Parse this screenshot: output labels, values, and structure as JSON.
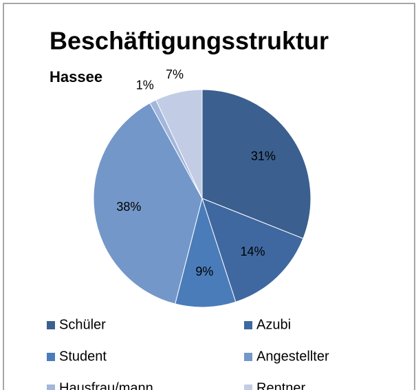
{
  "chart_data": {
    "type": "pie",
    "title": "Beschäftigungsstruktur",
    "subtitle": "Hassee",
    "categories": [
      "Schüler",
      "Azubi",
      "Student",
      "Angestellter",
      "Hausfrau/mann",
      "Rentner"
    ],
    "values": [
      31,
      14,
      9,
      38,
      1,
      7
    ],
    "value_labels": [
      "31%",
      "14%",
      "9%",
      "38%",
      "1%",
      "7%"
    ],
    "colors": [
      "#3b5f8e",
      "#3f68a0",
      "#4a7cba",
      "#7497c9",
      "#a3b6dc",
      "#c2cde5"
    ],
    "legend": "bottom"
  }
}
